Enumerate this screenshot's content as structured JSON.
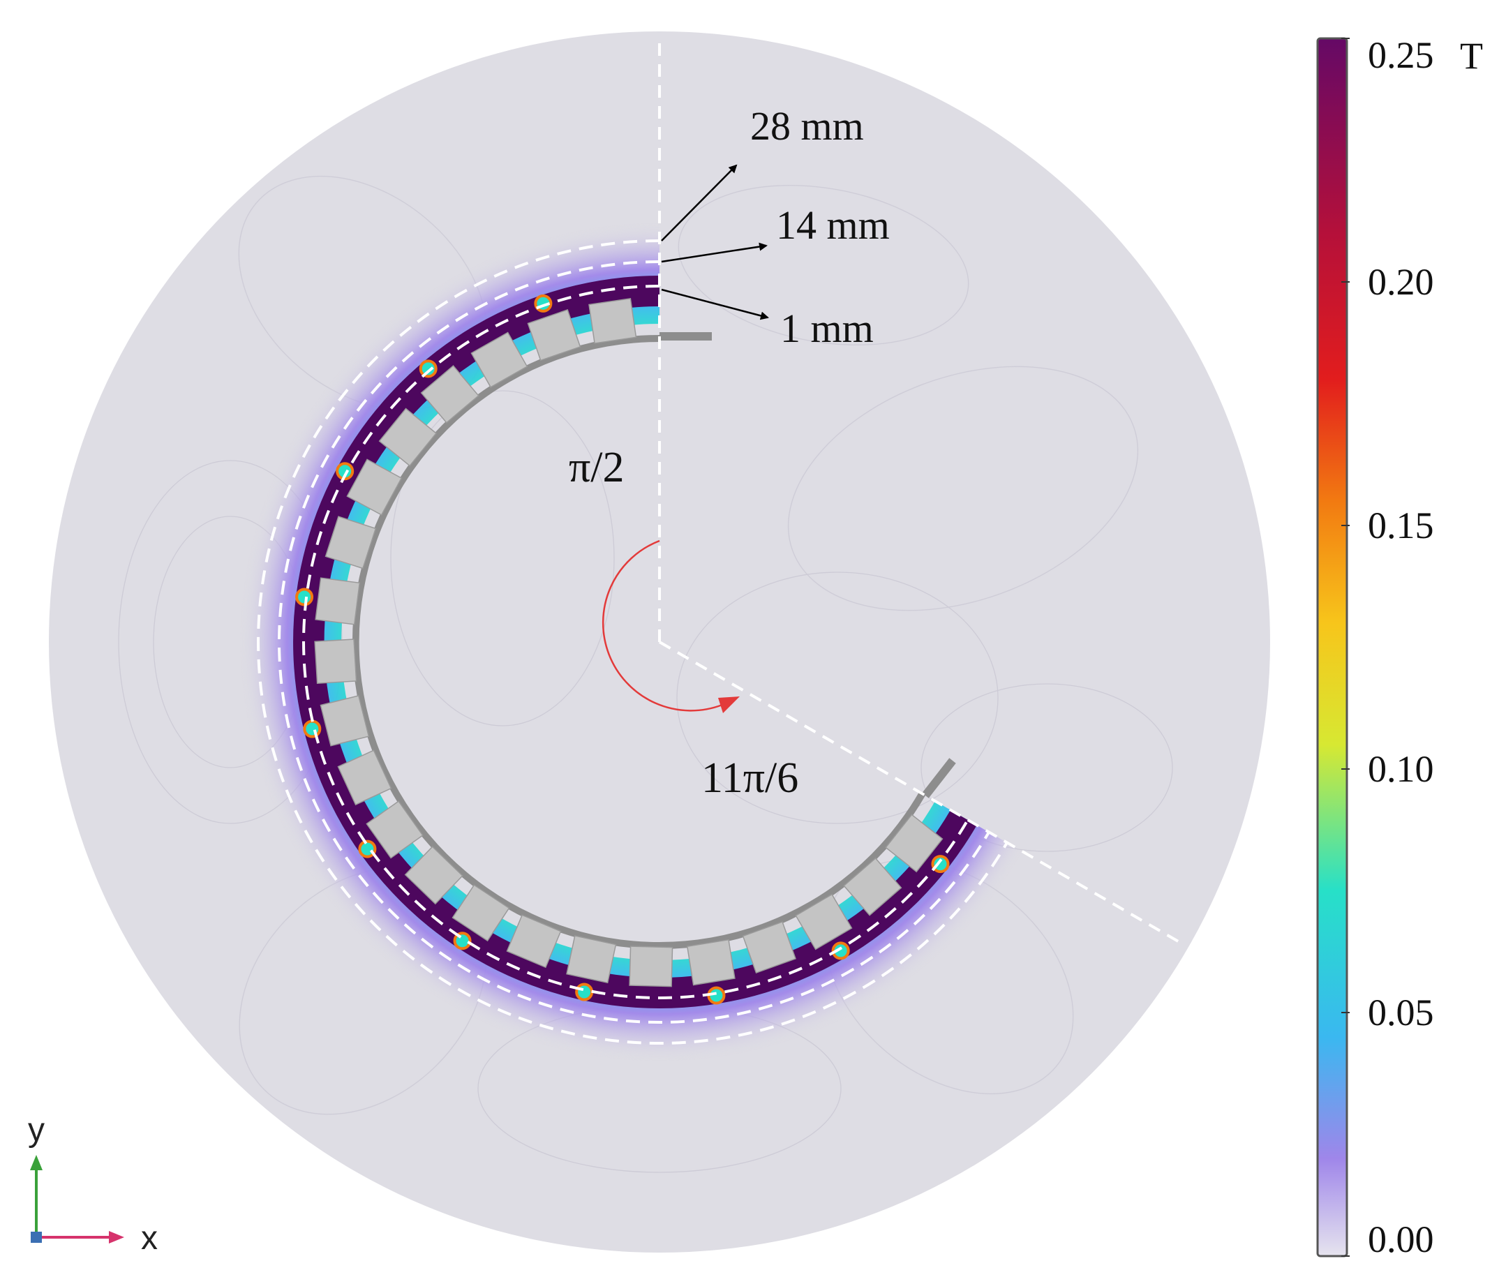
{
  "annotations": {
    "dist_outer": "28 mm",
    "dist_middle": "14 mm",
    "dist_inner": "1 mm",
    "angle_start": "π/2",
    "angle_end": "11π/6"
  },
  "colorbar": {
    "ticks": [
      "0.25",
      "0.20",
      "0.15",
      "0.10",
      "0.05",
      "0.00"
    ],
    "unit": "T",
    "range": [
      0.0,
      0.25
    ],
    "colormap": [
      "#e6e4ee",
      "#9f86ea",
      "#3ab8f0",
      "#27e0c8",
      "#d7e832",
      "#f7c51b",
      "#f27a11",
      "#e21d1d",
      "#b5103a",
      "#650966"
    ]
  },
  "axes_indicator": {
    "x_label": "x",
    "y_label": "y",
    "x_color": "#d6336c",
    "y_color": "#3aa13a"
  },
  "colors": {
    "background_disc": "#dedde4",
    "magnet_block": "#c4c4c4",
    "yoke": "#8d8d8d",
    "guide_line": "#ffffff",
    "angle_arc": "#e33a3a"
  }
}
